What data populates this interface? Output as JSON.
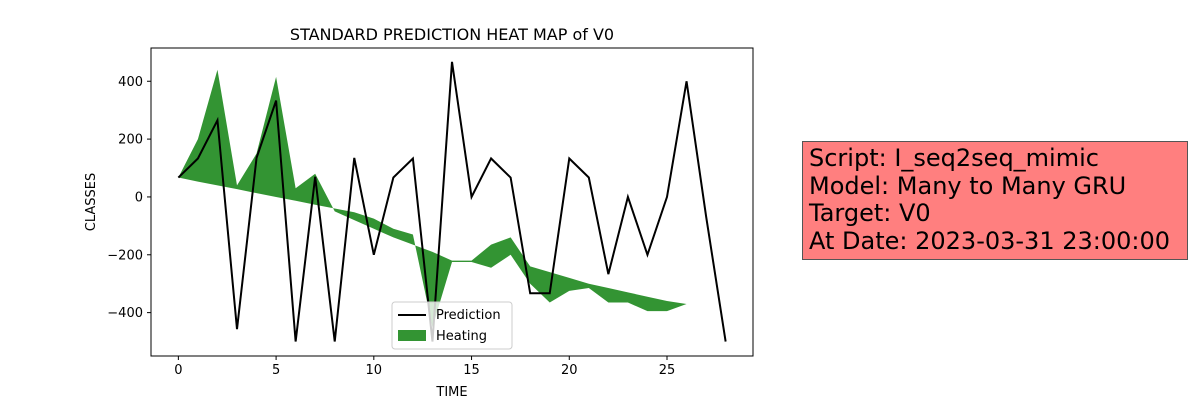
{
  "chart_data": {
    "type": "line",
    "title": "STANDARD PREDICTION HEAT MAP of V0",
    "xlabel": "TIME",
    "ylabel": "CLASSES",
    "xlim": [
      -1.4,
      29.4
    ],
    "ylim": [
      -550,
      515
    ],
    "xticks": [
      0,
      5,
      10,
      15,
      20,
      25
    ],
    "yticks": [
      -400,
      -200,
      0,
      200,
      400
    ],
    "grid": false,
    "legend_position": "bottom-center",
    "series": [
      {
        "name": "Prediction",
        "kind": "line",
        "color": "#000000",
        "x": [
          0,
          1,
          2,
          3,
          4,
          5,
          6,
          7,
          8,
          9,
          10,
          11,
          12,
          13,
          14,
          15,
          16,
          17,
          18,
          19,
          20,
          21,
          22,
          23,
          24,
          25,
          26,
          27,
          28
        ],
        "y": [
          67,
          133,
          265,
          -457,
          135,
          333,
          -500,
          70,
          -500,
          135,
          -200,
          67,
          133,
          -500,
          467,
          0,
          133,
          67,
          -333,
          -333,
          133,
          67,
          -267,
          0,
          -200,
          0,
          400,
          -67,
          -500
        ]
      },
      {
        "name": "Heating",
        "kind": "fill_between",
        "color": "#228b22",
        "x": [
          0,
          1,
          2,
          3,
          4,
          5,
          6,
          7,
          8,
          9,
          10,
          11,
          12,
          13,
          14,
          15,
          16,
          17,
          18,
          19,
          20,
          21,
          22,
          23,
          24,
          25,
          26,
          27,
          28
        ],
        "y_upper": [
          67,
          200,
          440,
          40,
          150,
          415,
          30,
          80,
          -50,
          -80,
          -110,
          -140,
          -165,
          -190,
          -220,
          -220,
          -165,
          -140,
          -240,
          -260,
          -280,
          -300,
          -315,
          -330,
          -345,
          -360,
          -370,
          -370,
          -370
        ],
        "y_lower": [
          67,
          53,
          40,
          27,
          13,
          0,
          -13,
          -27,
          -40,
          -53,
          -75,
          -110,
          -130,
          -450,
          -225,
          -225,
          -245,
          -200,
          -300,
          -365,
          -325,
          -315,
          -365,
          -365,
          -395,
          -395,
          -370,
          -370,
          -370
        ]
      }
    ]
  },
  "info_box": {
    "lines": [
      "Script: I_seq2seq_mimic",
      "Model: Many to Many GRU",
      "Target: V0",
      "At Date: 2023-03-31 23:00:00"
    ],
    "background_color": "#ff7f7f"
  }
}
